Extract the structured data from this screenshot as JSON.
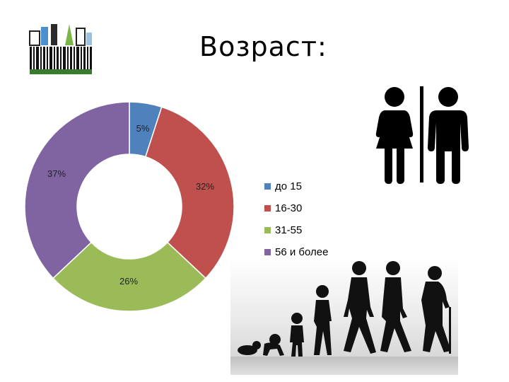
{
  "slide": {
    "title": "Возраст:"
  },
  "colors": {
    "blue": "#4F81BD",
    "red": "#C0504D",
    "green": "#9BBB59",
    "purple": "#8064A2"
  },
  "chart_data": {
    "type": "pie",
    "variant": "donut",
    "title": "",
    "categories": [
      "до 15",
      "16-30",
      "31-55",
      "56 и более"
    ],
    "values": [
      5,
      32,
      26,
      37
    ],
    "value_labels": [
      "5%",
      "32%",
      "26%",
      "37%"
    ],
    "colors": [
      "#4F81BD",
      "#C0504D",
      "#9BBB59",
      "#8064A2"
    ],
    "legend_position": "right"
  }
}
